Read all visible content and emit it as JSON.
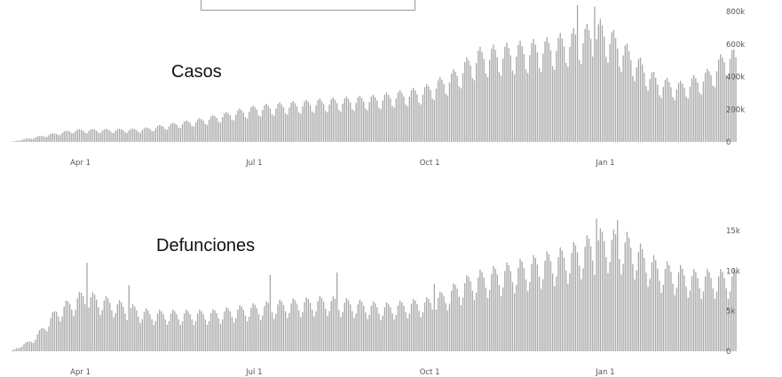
{
  "chart_data": [
    {
      "type": "bar",
      "annotation": "Casos",
      "x_ticks": [
        "Apr 1",
        "Jul 1",
        "Oct 1",
        "Jan 1"
      ],
      "y_ticks": [
        "0",
        "200k",
        "400k",
        "600k",
        "800k"
      ],
      "ylim": [
        0,
        800000
      ],
      "x_range": [
        "2020-03-08",
        "2021-03-23"
      ],
      "bar_color": "#a8a8a8",
      "weekly_cycle": [
        1.0,
        1.04,
        0.98,
        0.9,
        0.74,
        0.7,
        0.88
      ],
      "trend_anchors": [
        {
          "x": "2020-03-08",
          "y": 0
        },
        {
          "x": "2020-03-25",
          "y": 40000
        },
        {
          "x": "2020-04-10",
          "y": 75000
        },
        {
          "x": "2020-05-15",
          "y": 80000
        },
        {
          "x": "2020-06-15",
          "y": 140000
        },
        {
          "x": "2020-07-15",
          "y": 220000
        },
        {
          "x": "2020-08-15",
          "y": 255000
        },
        {
          "x": "2020-09-15",
          "y": 280000
        },
        {
          "x": "2020-10-10",
          "y": 330000
        },
        {
          "x": "2020-10-25",
          "y": 420000
        },
        {
          "x": "2020-11-08",
          "y": 560000
        },
        {
          "x": "2020-11-25",
          "y": 590000
        },
        {
          "x": "2020-12-15",
          "y": 620000
        },
        {
          "x": "2021-01-05",
          "y": 700000
        },
        {
          "x": "2021-01-12",
          "y": 730000
        },
        {
          "x": "2021-01-25",
          "y": 580000
        },
        {
          "x": "2021-02-10",
          "y": 390000
        },
        {
          "x": "2021-02-22",
          "y": 360000
        },
        {
          "x": "2021-03-08",
          "y": 430000
        },
        {
          "x": "2021-03-20",
          "y": 580000
        },
        {
          "x": "2021-03-23",
          "y": 530000
        }
      ],
      "spikes": [
        {
          "x": "2020-12-30",
          "y": 840000
        },
        {
          "x": "2021-01-08",
          "y": 830000
        }
      ]
    },
    {
      "type": "bar",
      "annotation": "Defunciones",
      "x_ticks": [
        "Apr 1",
        "Jul 1",
        "Oct 1",
        "Jan 1"
      ],
      "y_ticks": [
        "0",
        "5k",
        "10k",
        "15k"
      ],
      "ylim": [
        0,
        15000
      ],
      "x_range": [
        "2020-03-08",
        "2021-03-23"
      ],
      "bar_color": "#a8a8a8",
      "weekly_cycle": [
        1.0,
        1.1,
        1.06,
        0.98,
        0.84,
        0.7,
        0.8
      ],
      "trend_anchors": [
        {
          "x": "2020-03-08",
          "y": 0
        },
        {
          "x": "2020-03-20",
          "y": 1500
        },
        {
          "x": "2020-04-01",
          "y": 5000
        },
        {
          "x": "2020-04-15",
          "y": 7000
        },
        {
          "x": "2020-05-01",
          "y": 6000
        },
        {
          "x": "2020-05-20",
          "y": 4700
        },
        {
          "x": "2020-06-20",
          "y": 4700
        },
        {
          "x": "2020-07-25",
          "y": 5800
        },
        {
          "x": "2020-08-20",
          "y": 6300
        },
        {
          "x": "2020-09-20",
          "y": 5500
        },
        {
          "x": "2020-10-15",
          "y": 6200
        },
        {
          "x": "2020-11-05",
          "y": 9000
        },
        {
          "x": "2020-12-01",
          "y": 10500
        },
        {
          "x": "2020-12-25",
          "y": 12000
        },
        {
          "x": "2021-01-12",
          "y": 14000
        },
        {
          "x": "2021-01-25",
          "y": 13500
        },
        {
          "x": "2021-02-10",
          "y": 10500
        },
        {
          "x": "2021-03-01",
          "y": 9300
        },
        {
          "x": "2021-03-23",
          "y": 9300
        }
      ],
      "spikes": [
        {
          "x": "2020-04-17",
          "y": 11000
        },
        {
          "x": "2020-05-09",
          "y": 8200
        },
        {
          "x": "2020-07-22",
          "y": 9500
        },
        {
          "x": "2020-08-26",
          "y": 9800
        },
        {
          "x": "2020-10-16",
          "y": 8400
        },
        {
          "x": "2021-01-09",
          "y": 16500
        },
        {
          "x": "2021-01-20",
          "y": 16300
        }
      ]
    }
  ]
}
